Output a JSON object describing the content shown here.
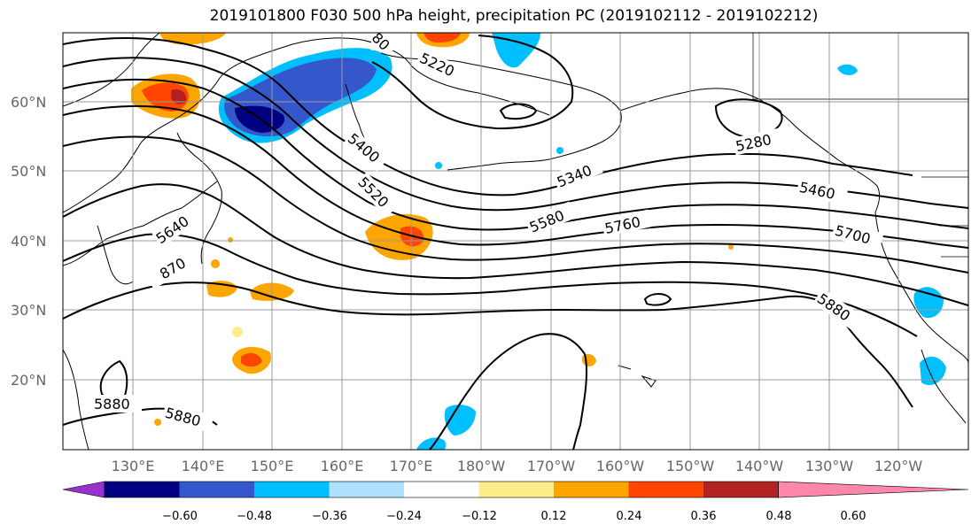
{
  "title": "2019101800 F030 500 hPa height, precipitation PC (2019102112 - 2019102212)",
  "lat_labels": [
    "60°N",
    "50°N",
    "40°N",
    "30°N",
    "20°N"
  ],
  "lon_labels": [
    "130°E",
    "140°E",
    "150°E",
    "160°E",
    "170°E",
    "180°W",
    "170°W",
    "160°W",
    "150°W",
    "140°W",
    "130°W",
    "120°W"
  ],
  "contour_labels": [
    "80",
    "5220",
    "5280",
    "5340",
    "5400",
    "5520",
    "5460",
    "5580",
    "5640",
    "5760",
    "5700",
    "870",
    "5880",
    "5880",
    "5880"
  ],
  "colorbar": {
    "ticks": [
      "−0.60",
      "−0.48",
      "−0.36",
      "−0.24",
      "−0.12",
      "0.12",
      "0.24",
      "0.36",
      "0.48",
      "0.60"
    ],
    "colors": [
      "#9932cc",
      "#000080",
      "#3557cc",
      "#00bfff",
      "#b0e0ff",
      "#ffffff",
      "#ffec8b",
      "#ffa500",
      "#ff4500",
      "#b22222",
      "#ff88aa"
    ]
  }
}
